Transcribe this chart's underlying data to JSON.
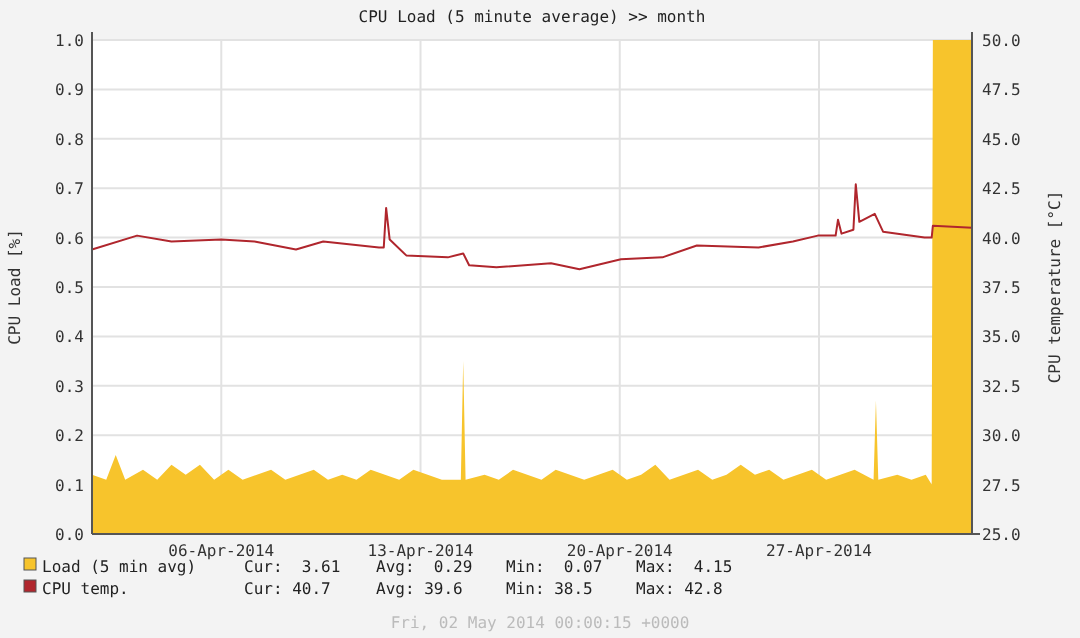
{
  "chart_data": {
    "type": "area",
    "title": "CPU Load (5 minute average) >> month",
    "ylabel": "CPU Load [%]",
    "y2label": "CPU temperature [°C]",
    "xlim": [
      "2014-04-01T11:00",
      "2014-05-02T09:00"
    ],
    "xticks": [
      {
        "value": "2014-04-06",
        "label": "06-Apr-2014"
      },
      {
        "value": "2014-04-13",
        "label": "13-Apr-2014"
      },
      {
        "value": "2014-04-20",
        "label": "20-Apr-2014"
      },
      {
        "value": "2014-04-27",
        "label": "27-Apr-2014"
      }
    ],
    "ylim": [
      0,
      1
    ],
    "yticks": [
      {
        "value": 0,
        "label": "0.0"
      },
      0.1,
      0.2,
      0.3,
      0.4,
      0.5,
      0.6,
      0.7,
      0.8,
      0.9,
      {
        "value": 1,
        "label": "1.0"
      }
    ],
    "y2lim": [
      25,
      50
    ],
    "y2ticks": [
      {
        "value": 25,
        "label": "25.0"
      },
      27.5,
      {
        "value": 30,
        "label": "30.0"
      },
      32.5,
      {
        "value": 35,
        "label": "35.0"
      },
      37.5,
      {
        "value": 40,
        "label": "40.0"
      },
      42.5,
      {
        "value": 45,
        "label": "45.0"
      },
      47.5,
      {
        "value": 50,
        "label": "50.0"
      }
    ],
    "grid": true,
    "legend": "bottom",
    "series": [
      {
        "name": "Load (5 min avg)",
        "color": "#f7c42c",
        "x": [
          "2014-04-01T11:00",
          "2014-04-01T23:00",
          "2014-04-02T07:00",
          "2014-04-02T15:00",
          "2014-04-03T06:00",
          "2014-04-03T18:00",
          "2014-04-04T06:00",
          "2014-04-04T18:00",
          "2014-04-05T06:00",
          "2014-04-05T18:00",
          "2014-04-06T06:00",
          "2014-04-06T18:00",
          "2014-04-07T06:00",
          "2014-04-07T18:00",
          "2014-04-08T06:00",
          "2014-04-08T18:00",
          "2014-04-09T06:00",
          "2014-04-09T18:00",
          "2014-04-10T06:00",
          "2014-04-10T18:00",
          "2014-04-11T06:00",
          "2014-04-11T18:00",
          "2014-04-12T06:00",
          "2014-04-12T18:00",
          "2014-04-13T06:00",
          "2014-04-13T18:00",
          "2014-04-14T10:00",
          "2014-04-14T12:00",
          "2014-04-14T14:00",
          "2014-04-15T06:00",
          "2014-04-15T18:00",
          "2014-04-16T06:00",
          "2014-04-16T18:00",
          "2014-04-17T06:00",
          "2014-04-17T18:00",
          "2014-04-18T06:00",
          "2014-04-18T18:00",
          "2014-04-19T06:00",
          "2014-04-19T18:00",
          "2014-04-20T06:00",
          "2014-04-20T18:00",
          "2014-04-21T06:00",
          "2014-04-21T18:00",
          "2014-04-22T06:00",
          "2014-04-22T18:00",
          "2014-04-23T06:00",
          "2014-04-23T18:00",
          "2014-04-24T06:00",
          "2014-04-24T18:00",
          "2014-04-25T06:00",
          "2014-04-25T18:00",
          "2014-04-26T06:00",
          "2014-04-26T18:00",
          "2014-04-27T06:00",
          "2014-04-27T18:00",
          "2014-04-28T06:00",
          "2014-04-28T22:00",
          "2014-04-29T00:00",
          "2014-04-29T02:00",
          "2014-04-29T18:00",
          "2014-04-30T06:00",
          "2014-04-30T18:00",
          "2014-04-30T23:00",
          "2014-05-01T00:00",
          "2014-05-02T09:00"
        ],
        "values": [
          0.12,
          0.11,
          0.16,
          0.11,
          0.13,
          0.11,
          0.14,
          0.12,
          0.14,
          0.11,
          0.13,
          0.11,
          0.12,
          0.13,
          0.11,
          0.12,
          0.13,
          0.11,
          0.12,
          0.11,
          0.13,
          0.12,
          0.11,
          0.13,
          0.12,
          0.11,
          0.11,
          0.35,
          0.11,
          0.12,
          0.11,
          0.13,
          0.12,
          0.11,
          0.13,
          0.12,
          0.11,
          0.12,
          0.13,
          0.11,
          0.12,
          0.14,
          0.11,
          0.12,
          0.13,
          0.11,
          0.12,
          0.14,
          0.12,
          0.13,
          0.11,
          0.12,
          0.13,
          0.11,
          0.12,
          0.13,
          0.11,
          0.27,
          0.11,
          0.12,
          0.11,
          0.12,
          0.1,
          1,
          1
        ]
      },
      {
        "name": "CPU temp.",
        "type": "line",
        "axis": "y2",
        "color": "#b0262d",
        "x": [
          "2014-04-01T11:00",
          "2014-04-03T01:00",
          "2014-04-04T06:00",
          "2014-04-06T00:00",
          "2014-04-07T04:00",
          "2014-04-08T15:00",
          "2014-04-09T14:00",
          "2014-04-11T13:00",
          "2014-04-11T17:00",
          "2014-04-11T19:00",
          "2014-04-11T22:00",
          "2014-04-12T12:00",
          "2014-04-13T23:00",
          "2014-04-14T12:00",
          "2014-04-14T17:00",
          "2014-04-15T16:00",
          "2014-04-17T14:00",
          "2014-04-18T14:00",
          "2014-04-20T01:00",
          "2014-04-21T12:00",
          "2014-04-22T17:00",
          "2014-04-24T21:00",
          "2014-04-26T02:00",
          "2014-04-26T23:00",
          "2014-04-27T14:00",
          "2014-04-27T16:00",
          "2014-04-27T19:00",
          "2014-04-28T05:00",
          "2014-04-28T07:00",
          "2014-04-28T10:00",
          "2014-04-28T23:00",
          "2014-04-29T06:00",
          "2014-04-30T17:00",
          "2014-04-30T23:00",
          "2014-05-01T00:00",
          "2014-05-02T09:00"
        ],
        "values": [
          39.4,
          40.1,
          39.8,
          39.9,
          39.8,
          39.4,
          39.8,
          39.5,
          39.5,
          41.5,
          39.9,
          39.1,
          39.0,
          39.2,
          38.6,
          38.5,
          38.7,
          38.4,
          38.9,
          39.0,
          39.6,
          39.5,
          39.8,
          40.1,
          40.1,
          40.9,
          40.2,
          40.4,
          42.7,
          40.8,
          41.2,
          40.3,
          40.0,
          40.0,
          40.6,
          40.5
        ]
      }
    ],
    "annotations": [
      "Cur:  3.61",
      "Avg:  0.29",
      "Min:  0.07",
      "Max:  4.15",
      "Cur: 40.7",
      "Avg: 39.6",
      "Min: 38.5",
      "Max: 42.8",
      "Fri, 02 May 2014 00:00:15 +0000"
    ]
  }
}
